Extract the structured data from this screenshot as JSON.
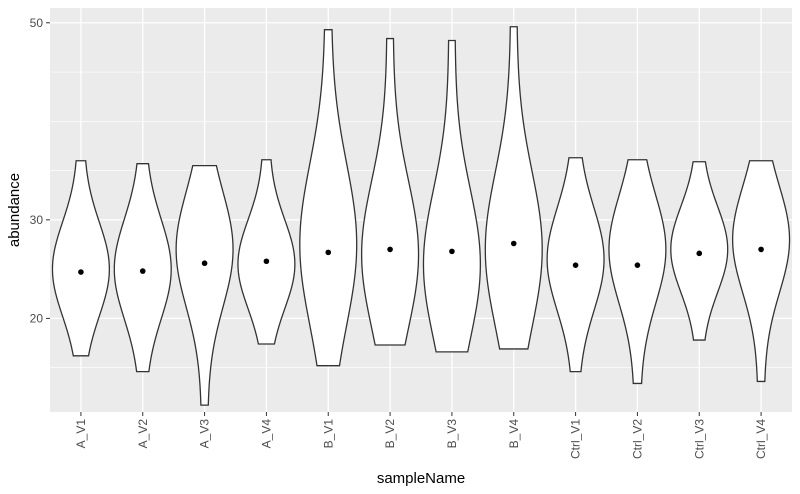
{
  "chart_data": {
    "type": "violin",
    "xlabel": "sampleName",
    "ylabel": "abundance",
    "ylim": [
      10.5,
      51.5
    ],
    "yticks": [
      20,
      30,
      50
    ],
    "y_minor_gridlines": [
      15,
      25,
      35,
      40,
      45
    ],
    "categories": [
      "A_V1",
      "A_V2",
      "A_V3",
      "A_V4",
      "B_V1",
      "B_V2",
      "B_V3",
      "B_V4",
      "Ctrl_V1",
      "Ctrl_V2",
      "Ctrl_V3",
      "Ctrl_V4"
    ],
    "series": [
      {
        "name": "A_V1",
        "min": 16.2,
        "max": 36.0,
        "mean": 24.7,
        "mode": 25.0
      },
      {
        "name": "A_V2",
        "min": 14.6,
        "max": 35.7,
        "mean": 24.8,
        "mode": 25.0
      },
      {
        "name": "A_V3",
        "min": 11.2,
        "max": 35.5,
        "mean": 25.6,
        "mode": 27.0
      },
      {
        "name": "A_V4",
        "min": 17.4,
        "max": 36.1,
        "mean": 25.8,
        "mode": 25.5
      },
      {
        "name": "B_V1",
        "min": 15.2,
        "max": 49.3,
        "mean": 26.7,
        "mode": 27.5
      },
      {
        "name": "B_V2",
        "min": 17.3,
        "max": 48.4,
        "mean": 27.0,
        "mode": 26.5
      },
      {
        "name": "B_V3",
        "min": 16.6,
        "max": 48.2,
        "mean": 26.8,
        "mode": 25.5
      },
      {
        "name": "B_V4",
        "min": 16.9,
        "max": 49.6,
        "mean": 27.6,
        "mode": 27.0
      },
      {
        "name": "Ctrl_V1",
        "min": 14.6,
        "max": 36.3,
        "mean": 25.4,
        "mode": 26.0
      },
      {
        "name": "Ctrl_V2",
        "min": 13.4,
        "max": 36.1,
        "mean": 25.4,
        "mode": 27.0
      },
      {
        "name": "Ctrl_V3",
        "min": 17.8,
        "max": 35.9,
        "mean": 26.6,
        "mode": 27.0
      },
      {
        "name": "Ctrl_V4",
        "min": 13.6,
        "max": 36.0,
        "mean": 27.0,
        "mode": 28.0
      }
    ]
  },
  "colors": {
    "panel": "#ebebeb",
    "grid": "#ffffff",
    "violin_fill": "#ffffff",
    "violin_stroke": "#333333",
    "mean_point": "#000000",
    "tick_text": "#4d4d4d"
  }
}
